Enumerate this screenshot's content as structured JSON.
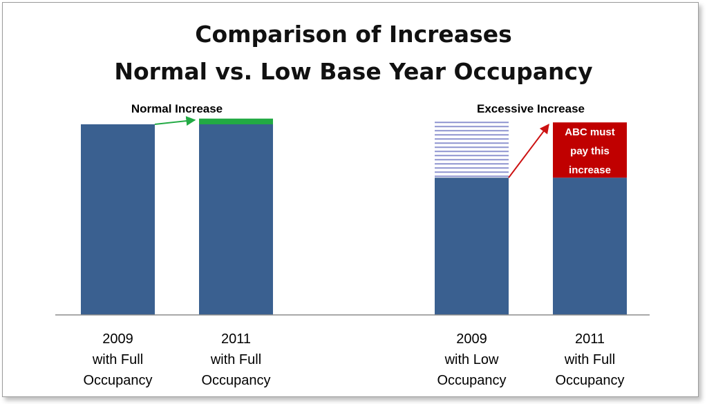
{
  "chart_data": {
    "type": "bar",
    "title": "Comparison of Increases",
    "subtitle": "Normal vs. Low Base Year Occupancy",
    "ylim": [
      0,
      100
    ],
    "grid": false,
    "categories": [
      [
        "2009",
        "with Full",
        "Occupancy"
      ],
      [
        "2011",
        "with Full",
        "Occupancy"
      ],
      [
        "2009",
        "with Low",
        "Occupancy"
      ],
      [
        "2011",
        "with Full",
        "Occupancy"
      ]
    ],
    "values": [
      100,
      100,
      72,
      72
    ],
    "increase_values": [
      0,
      3,
      29,
      29
    ],
    "increase_styles": [
      "none",
      "solid",
      "hatched",
      "solid"
    ],
    "annotations": [
      {
        "label": "Normal Increase",
        "from_bar": 0,
        "to_bar": 1,
        "arrow_color": "#22aa44"
      },
      {
        "label": "Excessive Increase",
        "from_bar": 2,
        "to_bar": 3,
        "arrow_color": "#cc1111",
        "note_lines": [
          "ABC must",
          "pay this",
          "increase"
        ]
      }
    ],
    "colors": {
      "bar": "#3a6090",
      "normal_increase": "#22aa44",
      "excessive_increase": "#c00000",
      "hatch": "#8d93cf",
      "axis": "#8c8c8c"
    }
  }
}
